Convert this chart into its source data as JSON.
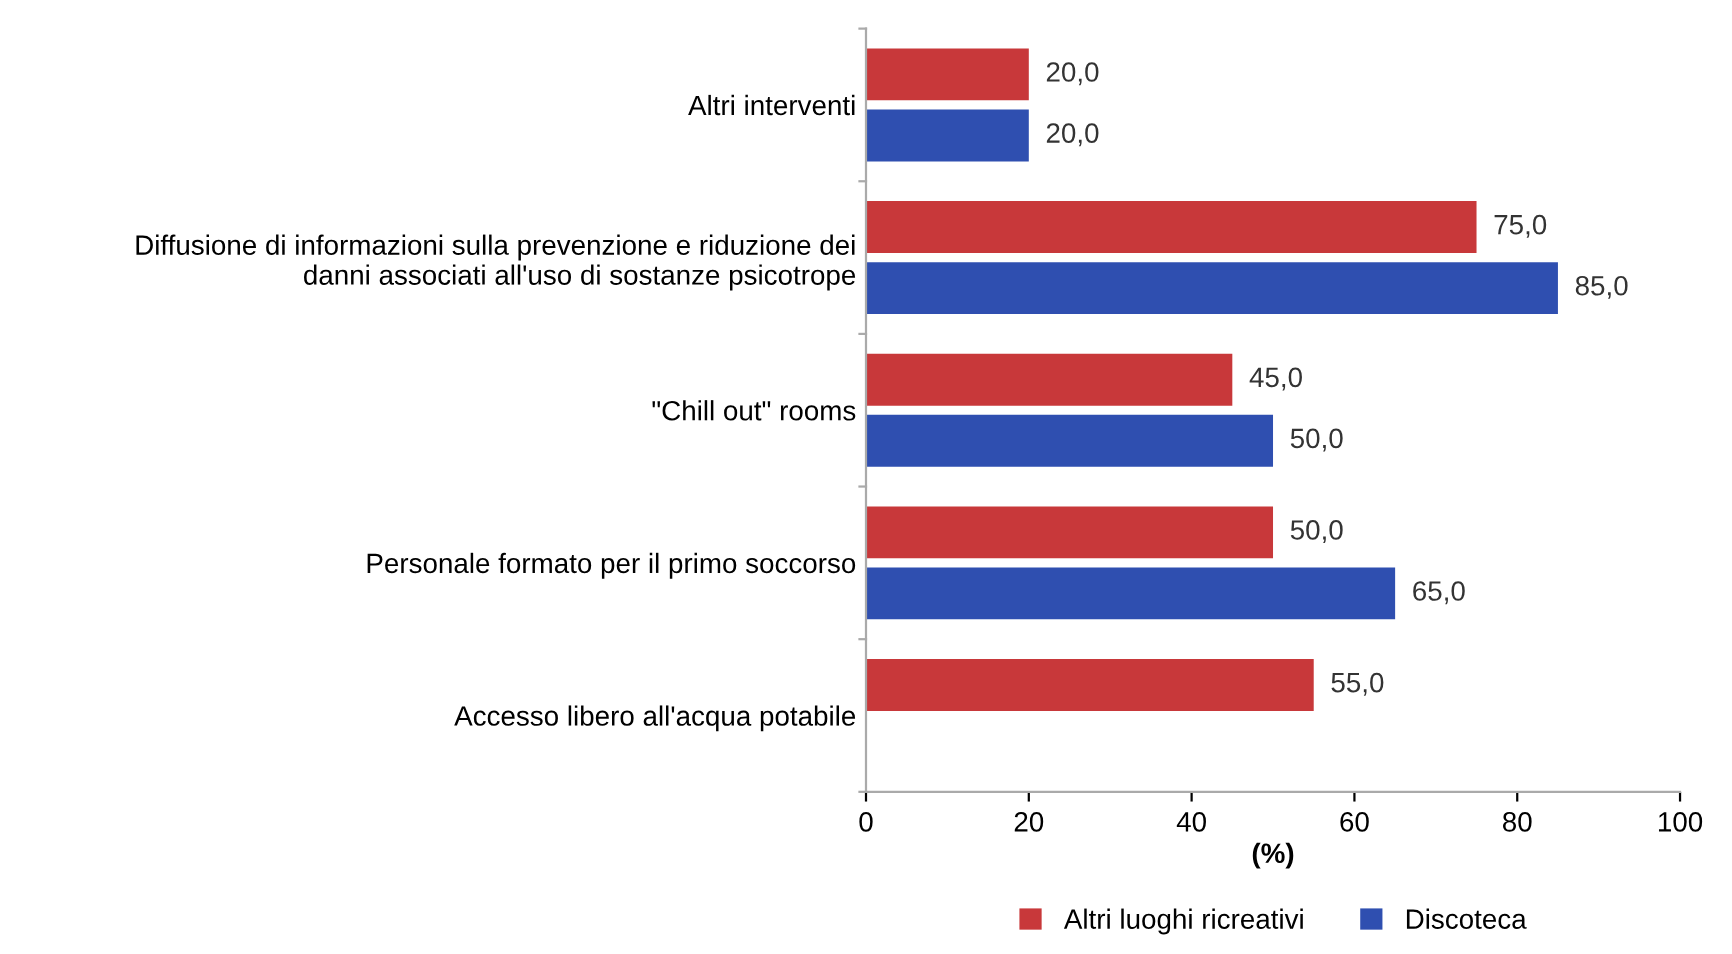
{
  "chart_data": {
    "type": "bar",
    "orientation": "horizontal",
    "xlabel": "(%)",
    "categories": [
      "Altri interventi",
      "Diffusione di informazioni sulla prevenzione e riduzione dei\ndanni associati all'uso di sostanze psicotrope",
      "\"Chill out\" rooms",
      "Personale formato per il primo soccorso",
      "Accesso libero all'acqua potabile"
    ],
    "series": [
      {
        "name": "Altri luoghi ricreativi",
        "color": "#c8383a",
        "values": [
          20,
          75,
          45,
          50,
          55
        ],
        "value_labels": [
          "20,0",
          "75,0",
          "45,0",
          "50,0",
          "55,0"
        ]
      },
      {
        "name": "Discoteca",
        "color": "#2f4fb0",
        "values": [
          20,
          85,
          50,
          65,
          null
        ],
        "value_labels": [
          "20,0",
          "85,0",
          "50,0",
          "65,0",
          null
        ]
      }
    ],
    "xlim": [
      0,
      100
    ],
    "xticks": [
      0,
      20,
      40,
      60,
      80,
      100
    ],
    "grid": false,
    "legend": "bottom"
  }
}
